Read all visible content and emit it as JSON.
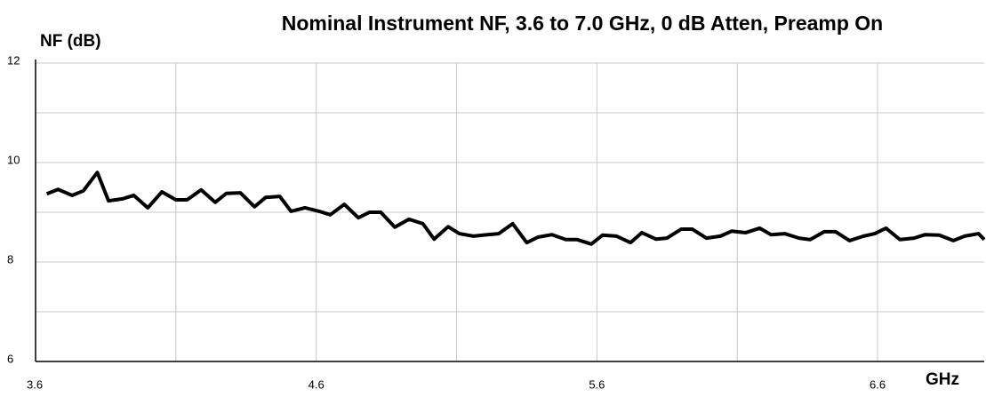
{
  "chart_data": {
    "type": "line",
    "title": "Nominal Instrument NF, 3.6 to 7.0 GHz, 0 dB Atten, Preamp On",
    "y_label": "NF (dB)",
    "x_label": "GHz",
    "x": [
      3.64,
      3.68,
      3.73,
      3.77,
      3.82,
      3.86,
      3.91,
      3.95,
      4.0,
      4.05,
      4.1,
      4.14,
      4.19,
      4.24,
      4.28,
      4.33,
      4.38,
      4.42,
      4.47,
      4.51,
      4.56,
      4.61,
      4.65,
      4.7,
      4.75,
      4.79,
      4.83,
      4.88,
      4.93,
      4.98,
      5.02,
      5.07,
      5.11,
      5.16,
      5.21,
      5.25,
      5.3,
      5.35,
      5.39,
      5.44,
      5.49,
      5.53,
      5.58,
      5.62,
      5.67,
      5.72,
      5.76,
      5.81,
      5.85,
      5.9,
      5.94,
      5.99,
      6.04,
      6.08,
      6.13,
      6.18,
      6.22,
      6.27,
      6.32,
      6.36,
      6.41,
      6.45,
      6.5,
      6.55,
      6.59,
      6.63,
      6.68,
      6.73,
      6.77,
      6.82,
      6.87,
      6.91,
      6.96,
      6.98
    ],
    "series": [
      {
        "color": "#000000",
        "values": [
          9.37,
          9.46,
          9.34,
          9.43,
          9.8,
          9.23,
          9.27,
          9.34,
          9.09,
          9.41,
          9.25,
          9.25,
          9.45,
          9.2,
          9.38,
          9.39,
          9.11,
          9.3,
          9.32,
          9.02,
          9.09,
          9.02,
          8.95,
          9.16,
          8.89,
          9.0,
          9.0,
          8.7,
          8.86,
          8.77,
          8.46,
          8.71,
          8.57,
          8.52,
          8.55,
          8.57,
          8.77,
          8.39,
          8.5,
          8.55,
          8.45,
          8.45,
          8.36,
          8.54,
          8.52,
          8.39,
          8.59,
          8.46,
          8.48,
          8.66,
          8.66,
          8.48,
          8.52,
          8.62,
          8.59,
          8.68,
          8.55,
          8.57,
          8.48,
          8.45,
          8.61,
          8.61,
          8.43,
          8.52,
          8.57,
          8.68,
          8.45,
          8.48,
          8.55,
          8.54,
          8.43,
          8.52,
          8.57,
          8.45
        ]
      }
    ],
    "xlim": [
      3.6,
      6.98
    ],
    "ylim": [
      6,
      12
    ],
    "xticks": [
      3.6,
      4.6,
      5.6,
      6.6
    ],
    "yticks": [
      6,
      8,
      10,
      12
    ],
    "xminor": [
      4.1,
      5.1,
      6.1
    ],
    "yminor": [
      7,
      9,
      11
    ],
    "grid": true
  }
}
